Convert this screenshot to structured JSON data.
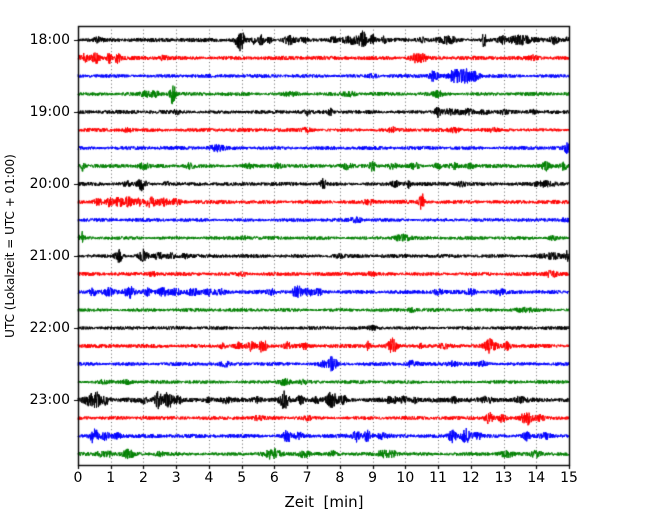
{
  "chart_data": {
    "type": "line",
    "subtype": "seismogram-helicorder-dayplot",
    "title": "",
    "xlabel": "Zeit  [min]",
    "ylabel": "UTC (Lokalzeit = UTC + 01:00)",
    "xlim": [
      0,
      15
    ],
    "x_ticks": [
      "0",
      "1",
      "2",
      "3",
      "4",
      "5",
      "6",
      "7",
      "8",
      "9",
      "10",
      "11",
      "12",
      "13",
      "14",
      "15"
    ],
    "y_ticks": [
      "18:00",
      "19:00",
      "20:00",
      "21:00",
      "22:00",
      "23:00"
    ],
    "minutes_per_row": 15,
    "rows_per_hour": 4,
    "grid": {
      "on": true,
      "style": "dotted",
      "color": "#666666"
    },
    "colors_cycle": [
      "#000000",
      "#ff0000",
      "#0000ff",
      "#008000"
    ],
    "axis_color": "#000000",
    "rows": [
      {
        "start": "18:00",
        "color": "#000000",
        "noise": 1.3,
        "events": [
          [
            0.6,
            1.5,
            0.1
          ],
          [
            4.95,
            9,
            0.09
          ],
          [
            5.35,
            2.5,
            0.05
          ],
          [
            5.6,
            3.5,
            0.06
          ],
          [
            5.85,
            2.5,
            0.05
          ],
          [
            6.45,
            3,
            0.12
          ],
          [
            6.9,
            2,
            0.08
          ],
          [
            7.8,
            2.5,
            0.06
          ],
          [
            8.35,
            2.5,
            0.18
          ],
          [
            8.7,
            6.5,
            0.08
          ],
          [
            9.0,
            4,
            0.06
          ],
          [
            9.35,
            2.5,
            0.05
          ],
          [
            10.5,
            1.8,
            0.1
          ],
          [
            11.3,
            2.8,
            0.2
          ],
          [
            12.4,
            7,
            0.04
          ],
          [
            12.95,
            2.5,
            0.08
          ],
          [
            13.5,
            3.5,
            0.25
          ],
          [
            14.55,
            3,
            0.08
          ],
          [
            14.97,
            3.5,
            0.05
          ]
        ]
      },
      {
        "start": "18:15",
        "color": "#ff0000",
        "noise": 1.3,
        "events": [
          [
            0.2,
            3,
            0.1
          ],
          [
            0.55,
            3.5,
            0.08
          ],
          [
            0.95,
            4,
            0.06
          ],
          [
            1.2,
            3.5,
            0.06
          ],
          [
            2.6,
            1.5,
            0.1
          ],
          [
            10.3,
            3,
            0.12
          ],
          [
            10.55,
            2.5,
            0.08
          ],
          [
            13.9,
            1.5,
            0.1
          ]
        ]
      },
      {
        "start": "18:30",
        "color": "#0000ff",
        "noise": 1.2,
        "events": [
          [
            9.0,
            1.5,
            0.1
          ],
          [
            10.85,
            4,
            0.1
          ],
          [
            11.5,
            4.5,
            0.12
          ],
          [
            11.85,
            5,
            0.15
          ],
          [
            12.15,
            3,
            0.1
          ]
        ]
      },
      {
        "start": "18:45",
        "color": "#008000",
        "noise": 1.2,
        "events": [
          [
            2.05,
            1.8,
            0.1
          ],
          [
            2.35,
            2,
            0.12
          ],
          [
            2.9,
            9,
            0.06
          ],
          [
            6.5,
            1.5,
            0.15
          ],
          [
            8.3,
            1.5,
            0.12
          ],
          [
            11.0,
            2,
            0.1
          ]
        ]
      },
      {
        "start": "19:00",
        "color": "#000000",
        "noise": 1.2,
        "events": [
          [
            3.0,
            1.5,
            0.08
          ],
          [
            7.0,
            2.2,
            0.05
          ],
          [
            7.7,
            2.4,
            0.05
          ],
          [
            11.0,
            4,
            0.07
          ],
          [
            11.4,
            2,
            0.2
          ],
          [
            11.9,
            1.8,
            0.12
          ],
          [
            12.4,
            1.8,
            0.1
          ],
          [
            13.0,
            1.8,
            0.08
          ],
          [
            13.9,
            1.8,
            0.07
          ]
        ]
      },
      {
        "start": "19:15",
        "color": "#ff0000",
        "noise": 1.2,
        "events": [
          [
            1.5,
            1.5,
            0.1
          ],
          [
            7.0,
            1.5,
            0.1
          ],
          [
            9.6,
            1.8,
            0.08
          ],
          [
            11.5,
            1.5,
            0.1
          ],
          [
            12.7,
            1.5,
            0.08
          ]
        ]
      },
      {
        "start": "19:30",
        "color": "#0000ff",
        "noise": 1.2,
        "events": [
          [
            4.25,
            2.2,
            0.15
          ],
          [
            14.95,
            3.5,
            0.08
          ]
        ]
      },
      {
        "start": "19:45",
        "color": "#008000",
        "noise": 1.2,
        "events": [
          [
            0.15,
            4,
            0.05
          ],
          [
            2.0,
            2,
            0.12
          ],
          [
            3.4,
            2,
            0.1
          ],
          [
            5.2,
            1.8,
            0.1
          ],
          [
            6.1,
            1.8,
            0.1
          ],
          [
            8.2,
            2,
            0.1
          ],
          [
            9.0,
            5,
            0.06
          ],
          [
            9.6,
            2.5,
            0.08
          ],
          [
            10.3,
            2.5,
            0.1
          ],
          [
            11.0,
            2,
            0.1
          ],
          [
            11.5,
            2,
            0.1
          ],
          [
            12.0,
            1.8,
            0.1
          ],
          [
            14.3,
            3,
            0.09
          ],
          [
            14.85,
            3,
            0.08
          ]
        ]
      },
      {
        "start": "20:00",
        "color": "#000000",
        "noise": 1.2,
        "events": [
          [
            1.5,
            2,
            0.08
          ],
          [
            1.95,
            5,
            0.08
          ],
          [
            2.7,
            2,
            0.07
          ],
          [
            7.5,
            4,
            0.06
          ],
          [
            9.7,
            2,
            0.1
          ],
          [
            10.1,
            3,
            0.07
          ],
          [
            11.7,
            1.5,
            0.1
          ],
          [
            14.3,
            2,
            0.25
          ]
        ]
      },
      {
        "start": "20:15",
        "color": "#ff0000",
        "noise": 1.3,
        "events": [
          [
            0.6,
            2.5,
            0.1
          ],
          [
            0.95,
            3,
            0.08
          ],
          [
            1.25,
            3.5,
            0.09
          ],
          [
            1.55,
            4,
            0.1
          ],
          [
            1.85,
            3,
            0.08
          ],
          [
            2.2,
            3.5,
            0.12
          ],
          [
            2.6,
            2.5,
            0.1
          ],
          [
            3.0,
            2,
            0.1
          ],
          [
            8.9,
            1.5,
            0.1
          ],
          [
            10.5,
            7,
            0.05
          ]
        ]
      },
      {
        "start": "20:30",
        "color": "#0000ff",
        "noise": 1.1,
        "events": [
          [
            8.5,
            1.8,
            0.15
          ],
          [
            14.9,
            1.5,
            0.1
          ]
        ]
      },
      {
        "start": "20:45",
        "color": "#008000",
        "noise": 1.1,
        "events": [
          [
            0.12,
            5,
            0.05
          ],
          [
            5.1,
            1.3,
            0.1
          ],
          [
            9.9,
            2.5,
            0.18
          ],
          [
            14.5,
            1.3,
            0.1
          ]
        ]
      },
      {
        "start": "21:00",
        "color": "#000000",
        "noise": 1.2,
        "events": [
          [
            1.25,
            5,
            0.08
          ],
          [
            2.0,
            5,
            0.09
          ],
          [
            2.45,
            3,
            0.08
          ],
          [
            2.85,
            2,
            0.1
          ],
          [
            3.25,
            1.5,
            0.1
          ],
          [
            8.0,
            1.3,
            0.1
          ],
          [
            14.5,
            1.8,
            0.25
          ],
          [
            14.97,
            5,
            0.05
          ]
        ]
      },
      {
        "start": "21:15",
        "color": "#ff0000",
        "noise": 1.2,
        "events": [
          [
            2.3,
            1.4,
            0.1
          ],
          [
            5.0,
            1.3,
            0.1
          ],
          [
            9.0,
            1.3,
            0.1
          ],
          [
            14.45,
            2.5,
            0.13
          ]
        ]
      },
      {
        "start": "21:30",
        "color": "#0000ff",
        "noise": 1.3,
        "events": [
          [
            0.45,
            2.5,
            0.08
          ],
          [
            0.95,
            3,
            0.1
          ],
          [
            1.6,
            4.5,
            0.12
          ],
          [
            2.1,
            3,
            0.08
          ],
          [
            2.6,
            2.5,
            0.13
          ],
          [
            3.0,
            2.5,
            0.1
          ],
          [
            3.5,
            2.5,
            0.16
          ],
          [
            4.0,
            2.5,
            0.1
          ],
          [
            4.35,
            2,
            0.1
          ],
          [
            5.9,
            1.8,
            0.08
          ],
          [
            6.7,
            5,
            0.09
          ],
          [
            7.05,
            2.5,
            0.08
          ],
          [
            7.35,
            2,
            0.08
          ],
          [
            11.0,
            2,
            0.1
          ],
          [
            12.0,
            2,
            0.1
          ],
          [
            12.9,
            1.8,
            0.08
          ]
        ]
      },
      {
        "start": "21:45",
        "color": "#008000",
        "noise": 1.1,
        "events": [
          [
            10.2,
            1.5,
            0.1
          ],
          [
            13.6,
            1.4,
            0.25
          ]
        ]
      },
      {
        "start": "22:00",
        "color": "#000000",
        "noise": 1.1,
        "events": [
          [
            9.0,
            1.2,
            0.1
          ]
        ]
      },
      {
        "start": "22:15",
        "color": "#ff0000",
        "noise": 1.3,
        "events": [
          [
            4.4,
            2,
            0.08
          ],
          [
            4.9,
            2.5,
            0.08
          ],
          [
            5.3,
            3.5,
            0.08
          ],
          [
            5.65,
            6,
            0.07
          ],
          [
            6.4,
            3,
            0.06
          ],
          [
            6.9,
            2.5,
            0.06
          ],
          [
            8.85,
            3.5,
            0.06
          ],
          [
            9.6,
            6,
            0.09
          ],
          [
            10.5,
            2.5,
            0.06
          ],
          [
            11.2,
            2,
            0.08
          ],
          [
            12.6,
            5,
            0.12
          ],
          [
            13.1,
            3,
            0.07
          ]
        ]
      },
      {
        "start": "22:30",
        "color": "#0000ff",
        "noise": 1.2,
        "events": [
          [
            4.5,
            1.5,
            0.1
          ],
          [
            7.5,
            2,
            0.1
          ],
          [
            7.78,
            7,
            0.08
          ],
          [
            10.2,
            2,
            0.1
          ],
          [
            11.4,
            2,
            0.12
          ],
          [
            12.35,
            2,
            0.1
          ]
        ]
      },
      {
        "start": "22:45",
        "color": "#008000",
        "noise": 1.1,
        "events": [
          [
            0.8,
            1.5,
            0.1
          ],
          [
            1.5,
            1.5,
            0.1
          ],
          [
            6.3,
            2.5,
            0.15
          ],
          [
            6.9,
            1.5,
            0.1
          ]
        ]
      },
      {
        "start": "23:00",
        "color": "#000000",
        "noise": 1.5,
        "events": [
          [
            0.3,
            3,
            0.1
          ],
          [
            0.55,
            6,
            0.1
          ],
          [
            0.85,
            3,
            0.08
          ],
          [
            2.0,
            2,
            0.06
          ],
          [
            2.45,
            7,
            0.08
          ],
          [
            2.75,
            7,
            0.09
          ],
          [
            3.05,
            3,
            0.08
          ],
          [
            4.0,
            1.8,
            0.1
          ],
          [
            4.5,
            2,
            0.1
          ],
          [
            5.5,
            2,
            0.1
          ],
          [
            6.3,
            6.5,
            0.09
          ],
          [
            6.8,
            3,
            0.07
          ],
          [
            7.3,
            2,
            0.08
          ],
          [
            7.75,
            6.5,
            0.1
          ],
          [
            8.1,
            2.5,
            0.1
          ],
          [
            9.6,
            2.5,
            0.12
          ],
          [
            9.95,
            3,
            0.08
          ],
          [
            10.3,
            2,
            0.1
          ],
          [
            11.5,
            1.8,
            0.1
          ],
          [
            12.5,
            1.8,
            0.1
          ],
          [
            13.5,
            1.8,
            0.1
          ]
        ]
      },
      {
        "start": "23:15",
        "color": "#ff0000",
        "noise": 1.2,
        "events": [
          [
            2.0,
            1.2,
            0.1
          ],
          [
            5.5,
            1.2,
            0.1
          ],
          [
            7.0,
            1.4,
            0.1
          ],
          [
            12.55,
            5,
            0.08
          ],
          [
            12.95,
            3,
            0.08
          ],
          [
            13.7,
            6,
            0.12
          ],
          [
            14.1,
            2.5,
            0.1
          ]
        ]
      },
      {
        "start": "23:30",
        "color": "#0000ff",
        "noise": 1.3,
        "events": [
          [
            0.5,
            6,
            0.09
          ],
          [
            0.85,
            3,
            0.08
          ],
          [
            1.2,
            2,
            0.1
          ],
          [
            6.4,
            4.5,
            0.09
          ],
          [
            6.75,
            2.5,
            0.08
          ],
          [
            8.5,
            4,
            0.08
          ],
          [
            8.85,
            4.5,
            0.08
          ],
          [
            9.3,
            2,
            0.1
          ],
          [
            11.45,
            5,
            0.09
          ],
          [
            11.85,
            6,
            0.1
          ],
          [
            12.2,
            2.5,
            0.1
          ],
          [
            13.7,
            3,
            0.08
          ],
          [
            14.3,
            1.8,
            0.1
          ]
        ]
      },
      {
        "start": "23:45",
        "color": "#008000",
        "noise": 1.2,
        "events": [
          [
            0.7,
            2,
            0.1
          ],
          [
            0.95,
            2,
            0.08
          ],
          [
            1.55,
            3,
            0.12
          ],
          [
            2.5,
            1.5,
            0.1
          ],
          [
            5.95,
            3.5,
            0.18
          ],
          [
            6.9,
            2.5,
            0.12
          ],
          [
            7.8,
            1.8,
            0.1
          ],
          [
            9.35,
            2.5,
            0.15
          ],
          [
            9.65,
            2,
            0.1
          ],
          [
            13.1,
            2,
            0.15
          ],
          [
            14.0,
            2.5,
            0.12
          ]
        ]
      }
    ]
  }
}
